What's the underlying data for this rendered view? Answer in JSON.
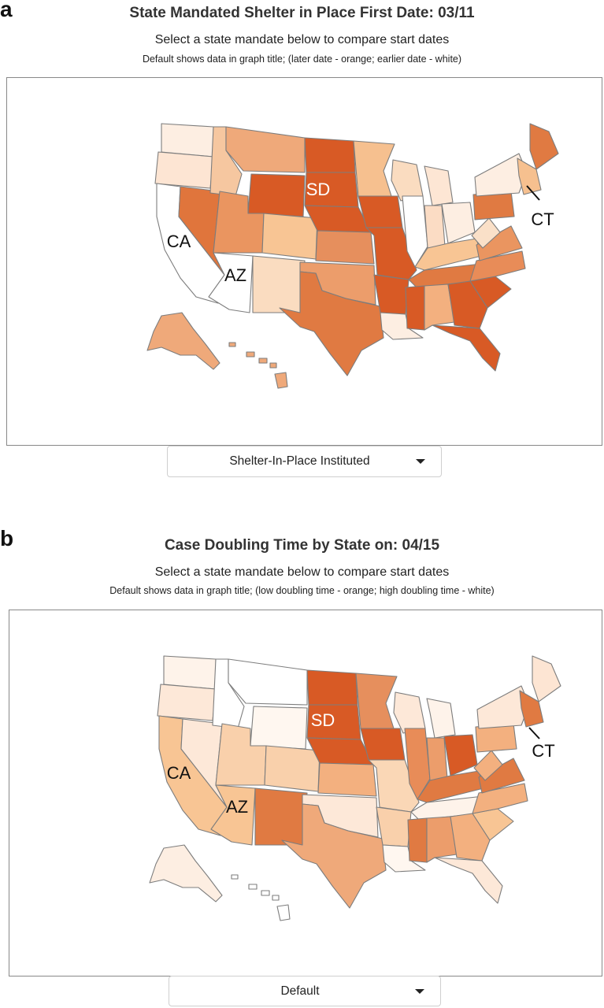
{
  "panel_a": {
    "letter": "a",
    "title": "State Mandated Shelter in Place First Date: 03/11",
    "subtitle": "Select a state mandate below to compare start dates",
    "note": "Default shows data in graph title; (later date - orange; earlier date - white)",
    "dropdown_value": "Shelter-In-Place Instituted",
    "state_labels": [
      "SD",
      "CA",
      "AZ",
      "CT"
    ],
    "colors": {
      "WA": "#fdeee2",
      "OR": "#fde5d3",
      "CA": "#ffffff",
      "NV": "#e0753c",
      "ID": "#f6c7a0",
      "MT": "#efa97a",
      "WY": "#d85a25",
      "UT": "#ea9560",
      "AZ": "#ffffff",
      "CO": "#f8c594",
      "NM": "#fadcc0",
      "ND": "#d85a25",
      "SD": "#d85a25",
      "NE": "#d85a25",
      "KS": "#e68f5d",
      "OK": "#ec9d6b",
      "TX": "#e07a42",
      "MN": "#f6c08f",
      "IA": "#d85a25",
      "MO": "#d85a25",
      "AR": "#d85a25",
      "LA": "#fdeee2",
      "WI": "#fadcc0",
      "IL": "#ffffff",
      "MI": "#fde6d4",
      "IN": "#fbdcc4",
      "OH": "#fdeee2",
      "KY": "#f8c594",
      "TN": "#e07a42",
      "MS": "#d85a25",
      "AL": "#f3b07f",
      "GA": "#d85a25",
      "FL": "#d85a25",
      "SC": "#d85a25",
      "NC": "#e88c58",
      "VA": "#ea9560",
      "WV": "#fae0c8",
      "PA": "#e07a42",
      "NY": "#fdeee2",
      "ME": "#e07a42",
      "NE6": "#f6c08f",
      "AK": "#efa97a",
      "HI": "#efa97a"
    },
    "hawaii_outline": "#7ee8f0"
  },
  "panel_b": {
    "letter": "b",
    "title": "Case Doubling Time by State on: 04/15",
    "subtitle": "Select a state mandate below to compare start dates",
    "note": "Default shows data in graph title; (low doubling time - orange; high doubling time - white)",
    "dropdown_value": "Default",
    "state_labels": [
      "SD",
      "CA",
      "AZ",
      "CT"
    ],
    "colors": {
      "WA": "#fef3ea",
      "OR": "#fde8d8",
      "CA": "#f8c594",
      "NV": "#fde8d8",
      "ID": "#ffffff",
      "MT": "#ffffff",
      "WY": "#fff7f0",
      "UT": "#f9d0ab",
      "AZ": "#f8c594",
      "CO": "#f9d0ab",
      "NM": "#e07a42",
      "ND": "#d85a25",
      "SD": "#d85a25",
      "NE": "#d85a25",
      "KS": "#f3b07f",
      "OK": "#fde8d8",
      "TX": "#efa97a",
      "MN": "#e68f5d",
      "IA": "#d85a25",
      "MO": "#fad7b6",
      "AR": "#f9d0ab",
      "LA": "#fff7f0",
      "WI": "#fde8d8",
      "IL": "#e88c58",
      "MI": "#fef3ea",
      "IN": "#ec9d6b",
      "OH": "#d85a25",
      "KY": "#e07a42",
      "TN": "#fef3ea",
      "MS": "#e07a42",
      "AL": "#ec9d6b",
      "GA": "#f3b07f",
      "FL": "#fde8d8",
      "SC": "#f8c594",
      "NC": "#f3b07f",
      "VA": "#e07a42",
      "WV": "#f3b07f",
      "PA": "#f3b07f",
      "NY": "#fde8d8",
      "ME": "#fde5d3",
      "NE6": "#e07a42",
      "AK": "#fdeee2",
      "HI": "#ffffff"
    },
    "hawaii_outline": "#7ee8f0"
  }
}
